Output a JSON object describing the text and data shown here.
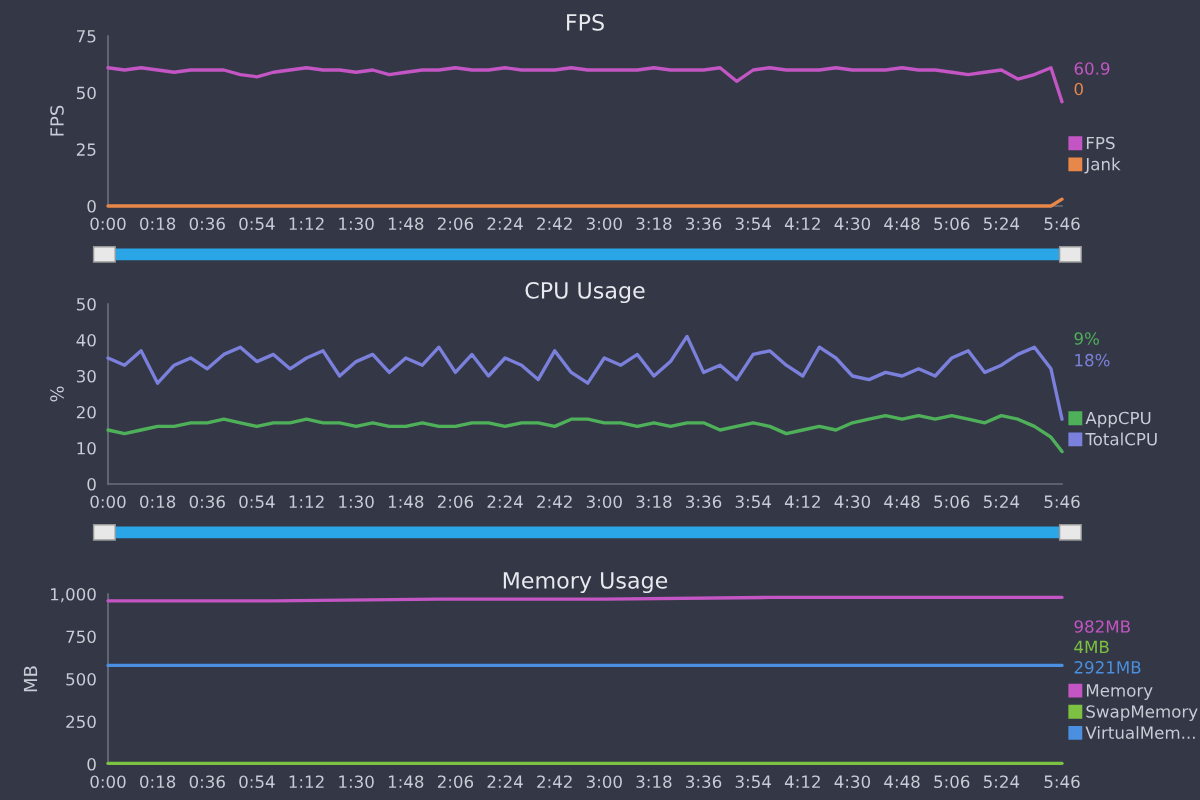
{
  "chart_data": [
    {
      "type": "line",
      "title": "FPS",
      "ylabel": "FPS",
      "legend": "right",
      "x": [
        0,
        6,
        12,
        18,
        24,
        30,
        36,
        42,
        48,
        54,
        60,
        66,
        72,
        78,
        84,
        90,
        96,
        102,
        108,
        114,
        120,
        126,
        132,
        138,
        144,
        150,
        156,
        162,
        168,
        174,
        180,
        186,
        192,
        198,
        204,
        210,
        216,
        222,
        228,
        234,
        240,
        246,
        252,
        258,
        264,
        270,
        276,
        282,
        288,
        294,
        300,
        306,
        312,
        318,
        324,
        330,
        336,
        342,
        346
      ],
      "xlim": [
        0,
        346
      ],
      "xticks": [
        {
          "value": 0,
          "label": "0:00"
        },
        {
          "value": 18,
          "label": "0:18"
        },
        {
          "value": 36,
          "label": "0:36"
        },
        {
          "value": 54,
          "label": "0:54"
        },
        {
          "value": 72,
          "label": "1:12"
        },
        {
          "value": 90,
          "label": "1:30"
        },
        {
          "value": 108,
          "label": "1:48"
        },
        {
          "value": 126,
          "label": "2:06"
        },
        {
          "value": 144,
          "label": "2:24"
        },
        {
          "value": 162,
          "label": "2:42"
        },
        {
          "value": 180,
          "label": "3:00"
        },
        {
          "value": 198,
          "label": "3:18"
        },
        {
          "value": 216,
          "label": "3:36"
        },
        {
          "value": 234,
          "label": "3:54"
        },
        {
          "value": 252,
          "label": "4:12"
        },
        {
          "value": 270,
          "label": "4:30"
        },
        {
          "value": 288,
          "label": "4:48"
        },
        {
          "value": 306,
          "label": "5:06"
        },
        {
          "value": 324,
          "label": "5:24"
        },
        {
          "value": 346,
          "label": "5:46"
        }
      ],
      "ylim": [
        0,
        75
      ],
      "yticks": [
        0,
        25,
        50,
        75
      ],
      "annotations": [
        "60.9",
        "0"
      ],
      "series": [
        {
          "name": "FPS",
          "color": "#c455c4",
          "values": [
            61,
            60,
            61,
            60,
            59,
            60,
            60,
            60,
            58,
            57,
            59,
            60,
            61,
            60,
            60,
            59,
            60,
            58,
            59,
            60,
            60,
            61,
            60,
            60,
            61,
            60,
            60,
            60,
            61,
            60,
            60,
            60,
            60,
            61,
            60,
            60,
            60,
            61,
            55,
            60,
            61,
            60,
            60,
            60,
            61,
            60,
            60,
            60,
            61,
            60,
            60,
            59,
            58,
            59,
            60,
            56,
            58,
            61,
            46
          ]
        },
        {
          "name": "Jank",
          "color": "#e8874a",
          "values": [
            0,
            0,
            0,
            0,
            0,
            0,
            0,
            0,
            0,
            0,
            0,
            0,
            0,
            0,
            0,
            0,
            0,
            0,
            0,
            0,
            0,
            0,
            0,
            0,
            0,
            0,
            0,
            0,
            0,
            0,
            0,
            0,
            0,
            0,
            0,
            0,
            0,
            0,
            0,
            0,
            0,
            0,
            0,
            0,
            0,
            0,
            0,
            0,
            0,
            0,
            0,
            0,
            0,
            0,
            0,
            0,
            0,
            0,
            3
          ]
        }
      ]
    },
    {
      "type": "line",
      "title": "CPU Usage",
      "ylabel": "%",
      "legend": "right",
      "x": [
        0,
        6,
        12,
        18,
        24,
        30,
        36,
        42,
        48,
        54,
        60,
        66,
        72,
        78,
        84,
        90,
        96,
        102,
        108,
        114,
        120,
        126,
        132,
        138,
        144,
        150,
        156,
        162,
        168,
        174,
        180,
        186,
        192,
        198,
        204,
        210,
        216,
        222,
        228,
        234,
        240,
        246,
        252,
        258,
        264,
        270,
        276,
        282,
        288,
        294,
        300,
        306,
        312,
        318,
        324,
        330,
        336,
        342,
        346
      ],
      "xlim": [
        0,
        346
      ],
      "xticks": [
        {
          "value": 0,
          "label": "0:00"
        },
        {
          "value": 18,
          "label": "0:18"
        },
        {
          "value": 36,
          "label": "0:36"
        },
        {
          "value": 54,
          "label": "0:54"
        },
        {
          "value": 72,
          "label": "1:12"
        },
        {
          "value": 90,
          "label": "1:30"
        },
        {
          "value": 108,
          "label": "1:48"
        },
        {
          "value": 126,
          "label": "2:06"
        },
        {
          "value": 144,
          "label": "2:24"
        },
        {
          "value": 162,
          "label": "2:42"
        },
        {
          "value": 180,
          "label": "3:00"
        },
        {
          "value": 198,
          "label": "3:18"
        },
        {
          "value": 216,
          "label": "3:36"
        },
        {
          "value": 234,
          "label": "3:54"
        },
        {
          "value": 252,
          "label": "4:12"
        },
        {
          "value": 270,
          "label": "4:30"
        },
        {
          "value": 288,
          "label": "4:48"
        },
        {
          "value": 306,
          "label": "5:06"
        },
        {
          "value": 324,
          "label": "5:24"
        },
        {
          "value": 346,
          "label": "5:46"
        }
      ],
      "ylim": [
        0,
        50
      ],
      "yticks": [
        0,
        10,
        20,
        30,
        40,
        50
      ],
      "annotations": [
        "9%",
        "18%"
      ],
      "series": [
        {
          "name": "AppCPU",
          "color": "#4fb05a",
          "values": [
            15,
            14,
            15,
            16,
            16,
            17,
            17,
            18,
            17,
            16,
            17,
            17,
            18,
            17,
            17,
            16,
            17,
            16,
            16,
            17,
            16,
            16,
            17,
            17,
            16,
            17,
            17,
            16,
            18,
            18,
            17,
            17,
            16,
            17,
            16,
            17,
            17,
            15,
            16,
            17,
            16,
            14,
            15,
            16,
            15,
            17,
            18,
            19,
            18,
            19,
            18,
            19,
            18,
            17,
            19,
            18,
            16,
            13,
            9
          ]
        },
        {
          "name": "TotalCPU",
          "color": "#7b80dd",
          "values": [
            35,
            33,
            37,
            28,
            33,
            35,
            32,
            36,
            38,
            34,
            36,
            32,
            35,
            37,
            30,
            34,
            36,
            31,
            35,
            33,
            38,
            31,
            36,
            30,
            35,
            33,
            29,
            37,
            31,
            28,
            35,
            33,
            36,
            30,
            34,
            41,
            31,
            33,
            29,
            36,
            37,
            33,
            30,
            38,
            35,
            30,
            29,
            31,
            30,
            32,
            30,
            35,
            37,
            31,
            33,
            36,
            38,
            32,
            18
          ]
        }
      ]
    },
    {
      "type": "line",
      "title": "Memory Usage",
      "ylabel": "MB",
      "legend": "right",
      "xlim": [
        0,
        346
      ],
      "xticks": [
        {
          "value": 0,
          "label": "0:00"
        },
        {
          "value": 18,
          "label": "0:18"
        },
        {
          "value": 36,
          "label": "0:36"
        },
        {
          "value": 54,
          "label": "0:54"
        },
        {
          "value": 72,
          "label": "1:12"
        },
        {
          "value": 90,
          "label": "1:30"
        },
        {
          "value": 108,
          "label": "1:48"
        },
        {
          "value": 126,
          "label": "2:06"
        },
        {
          "value": 144,
          "label": "2:24"
        },
        {
          "value": 162,
          "label": "2:42"
        },
        {
          "value": 180,
          "label": "3:00"
        },
        {
          "value": 198,
          "label": "3:18"
        },
        {
          "value": 216,
          "label": "3:36"
        },
        {
          "value": 234,
          "label": "3:54"
        },
        {
          "value": 252,
          "label": "4:12"
        },
        {
          "value": 270,
          "label": "4:30"
        },
        {
          "value": 288,
          "label": "4:48"
        },
        {
          "value": 306,
          "label": "5:06"
        },
        {
          "value": 324,
          "label": "5:24"
        },
        {
          "value": 346,
          "label": "5:46"
        }
      ],
      "ylim": [
        0,
        1000
      ],
      "yticks": [
        0,
        250,
        500,
        750,
        {
          "value": 1000,
          "label": "1,000"
        }
      ],
      "annotations": [
        "982MB",
        "4MB",
        "2921MB"
      ],
      "series": [
        {
          "name": "Memory",
          "color": "#c455c4",
          "x": [
            0,
            60,
            120,
            180,
            240,
            300,
            346
          ],
          "values": [
            960,
            960,
            970,
            970,
            980,
            980,
            980
          ]
        },
        {
          "name": "SwapMemory",
          "color": "#7cc142",
          "x": [
            0,
            346
          ],
          "values": [
            4,
            4
          ]
        },
        {
          "name": "VirtualMem...",
          "color": "#4a8fe0",
          "x": [
            0,
            346
          ],
          "values": [
            580,
            580
          ]
        }
      ]
    }
  ]
}
